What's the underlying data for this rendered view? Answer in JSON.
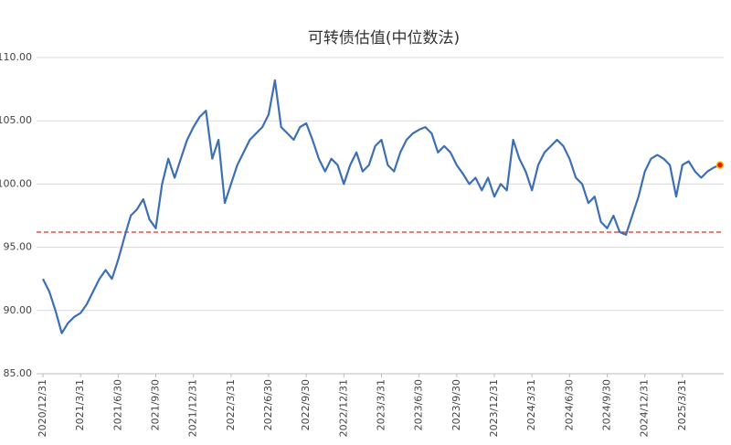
{
  "chart_data": {
    "type": "line",
    "title": "可转债估值(中位数法)",
    "categories": [
      "2020/12/31",
      null,
      null,
      null,
      null,
      null,
      "2021/3/31",
      null,
      null,
      null,
      null,
      null,
      "2021/6/30",
      null,
      null,
      null,
      null,
      null,
      "2021/9/30",
      null,
      null,
      null,
      null,
      null,
      "2021/12/31",
      null,
      null,
      null,
      null,
      null,
      "2022/3/31",
      null,
      null,
      null,
      null,
      null,
      "2022/6/30",
      null,
      null,
      null,
      null,
      null,
      "2022/9/30",
      null,
      null,
      null,
      null,
      null,
      "2022/12/31",
      null,
      null,
      null,
      null,
      null,
      "2023/3/31",
      null,
      null,
      null,
      null,
      null,
      "2023/6/30",
      null,
      null,
      null,
      null,
      null,
      "2023/9/30",
      null,
      null,
      null,
      null,
      null,
      "2023/12/31",
      null,
      null,
      null,
      null,
      null,
      "2024/3/31",
      null,
      null,
      null,
      null,
      null,
      "2024/6/30",
      null,
      null,
      null,
      null,
      null,
      "2024/9/30",
      null,
      null,
      null,
      null,
      null,
      "2024/12/31",
      null,
      null,
      null,
      null,
      null,
      "2025/3/31",
      null,
      null,
      null,
      null,
      null,
      null
    ],
    "series": [
      {
        "color": "#3d6fb4",
        "values": [
          92.5,
          91.5,
          90.0,
          88.2,
          89.0,
          89.5,
          89.8,
          90.5,
          91.5,
          92.5,
          93.2,
          92.5,
          94.0,
          95.8,
          97.5,
          98.0,
          98.8,
          97.2,
          96.5,
          100.0,
          102.0,
          100.5,
          102.0,
          103.5,
          104.5,
          105.3,
          105.8,
          102.0,
          103.5,
          98.5,
          100.0,
          101.5,
          102.5,
          103.5,
          104.0,
          104.5,
          105.5,
          108.2,
          104.5,
          104.0,
          103.5,
          104.5,
          104.8,
          103.5,
          102.0,
          101.0,
          102.0,
          101.5,
          100.0,
          101.5,
          102.5,
          101.0,
          101.5,
          103.0,
          103.5,
          101.5,
          101.0,
          102.5,
          103.5,
          104.0,
          104.3,
          104.5,
          104.0,
          102.5,
          103.0,
          102.5,
          101.5,
          100.8,
          100.0,
          100.5,
          99.5,
          100.5,
          99.0,
          100.0,
          99.5,
          103.5,
          102.0,
          101.0,
          99.5,
          101.5,
          102.5,
          103.0,
          103.5,
          103.0,
          102.0,
          100.5,
          100.0,
          98.5,
          99.0,
          97.0,
          96.5,
          97.5,
          96.2,
          96.0,
          97.5,
          99.0,
          101.0,
          102.0,
          102.3,
          102.0,
          101.5,
          99.0,
          101.5,
          101.8,
          101.0,
          100.5,
          101.0,
          101.3,
          101.5
        ]
      }
    ],
    "reference_line": 96.2,
    "reference_color": "#d9302a",
    "last_point_color": "#e8190f",
    "ylim": [
      85,
      110
    ],
    "yticks": [
      {
        "value": 85,
        "label": "85.00"
      },
      {
        "value": 90,
        "label": "90.00"
      },
      {
        "value": 95,
        "label": "95.00"
      },
      {
        "value": 100,
        "label": "100.00"
      },
      {
        "value": 105,
        "label": "105.00"
      },
      {
        "value": 110,
        "label": "110.00"
      }
    ],
    "grid": true
  }
}
